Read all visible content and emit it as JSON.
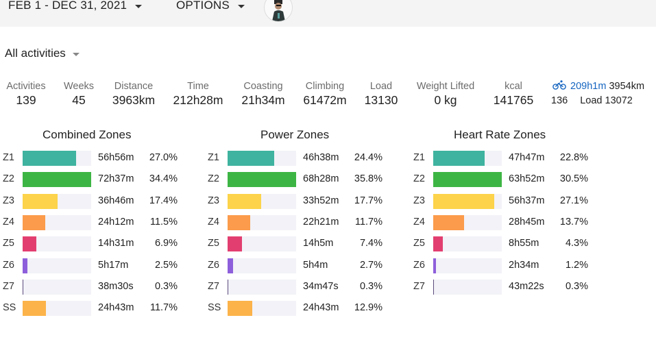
{
  "header": {
    "date_range": "FEB 1 - DEC 31, 2021",
    "options_label": "OPTIONS",
    "avatar_icon": "user-avatar"
  },
  "filter": {
    "label": "All activities"
  },
  "stats": [
    {
      "label": "Activities",
      "value": "139"
    },
    {
      "label": "Weeks",
      "value": "45"
    },
    {
      "label": "Distance",
      "value": "3963km"
    },
    {
      "label": "Time",
      "value": "212h28m"
    },
    {
      "label": "Coasting",
      "value": "21h34m"
    },
    {
      "label": "Climbing",
      "value": "61472m"
    },
    {
      "label": "Load",
      "value": "13130"
    },
    {
      "label": "Weight Lifted",
      "value": "0 kg"
    },
    {
      "label": "kcal",
      "value": "141765"
    }
  ],
  "ride_summary": {
    "icon": "bicycle-icon",
    "time": "209h1m",
    "distance": "3954km",
    "count": "136",
    "load": "Load 13072"
  },
  "zone_colors": {
    "Z1": "#3fb39f",
    "Z2": "#3db544",
    "Z3": "#fcd34a",
    "Z4": "#fb9b4b",
    "Z5": "#e23f70",
    "Z6": "#8e5fdb",
    "Z7": "#5b4a7a",
    "SS": "#fcb34a"
  },
  "panels": [
    {
      "title": "Combined Zones",
      "zones": [
        {
          "zone": "Z1",
          "time": "56h56m",
          "pct": "27.0%",
          "value": 27.0
        },
        {
          "zone": "Z2",
          "time": "72h37m",
          "pct": "34.4%",
          "value": 34.4
        },
        {
          "zone": "Z3",
          "time": "36h46m",
          "pct": "17.4%",
          "value": 17.4
        },
        {
          "zone": "Z4",
          "time": "24h12m",
          "pct": "11.5%",
          "value": 11.5
        },
        {
          "zone": "Z5",
          "time": "14h31m",
          "pct": "6.9%",
          "value": 6.9
        },
        {
          "zone": "Z6",
          "time": "5h17m",
          "pct": "2.5%",
          "value": 2.5
        },
        {
          "zone": "Z7",
          "time": "38m30s",
          "pct": "0.3%",
          "value": 0.3
        },
        {
          "zone": "SS",
          "time": "24h43m",
          "pct": "11.7%",
          "value": 11.7
        }
      ]
    },
    {
      "title": "Power Zones",
      "zones": [
        {
          "zone": "Z1",
          "time": "46h38m",
          "pct": "24.4%",
          "value": 24.4
        },
        {
          "zone": "Z2",
          "time": "68h28m",
          "pct": "35.8%",
          "value": 35.8
        },
        {
          "zone": "Z3",
          "time": "33h52m",
          "pct": "17.7%",
          "value": 17.7
        },
        {
          "zone": "Z4",
          "time": "22h21m",
          "pct": "11.7%",
          "value": 11.7
        },
        {
          "zone": "Z5",
          "time": "14h5m",
          "pct": "7.4%",
          "value": 7.4
        },
        {
          "zone": "Z6",
          "time": "5h4m",
          "pct": "2.7%",
          "value": 2.7
        },
        {
          "zone": "Z7",
          "time": "34m47s",
          "pct": "0.3%",
          "value": 0.3
        },
        {
          "zone": "SS",
          "time": "24h43m",
          "pct": "12.9%",
          "value": 12.9
        }
      ]
    },
    {
      "title": "Heart Rate Zones",
      "zones": [
        {
          "zone": "Z1",
          "time": "47h47m",
          "pct": "22.8%",
          "value": 22.8
        },
        {
          "zone": "Z2",
          "time": "63h52m",
          "pct": "30.5%",
          "value": 30.5
        },
        {
          "zone": "Z3",
          "time": "56h37m",
          "pct": "27.1%",
          "value": 27.1
        },
        {
          "zone": "Z4",
          "time": "28h45m",
          "pct": "13.7%",
          "value": 13.7
        },
        {
          "zone": "Z5",
          "time": "8h55m",
          "pct": "4.3%",
          "value": 4.3
        },
        {
          "zone": "Z6",
          "time": "2h34m",
          "pct": "1.2%",
          "value": 1.2
        },
        {
          "zone": "Z7",
          "time": "43m22s",
          "pct": "0.3%",
          "value": 0.3
        }
      ]
    }
  ]
}
